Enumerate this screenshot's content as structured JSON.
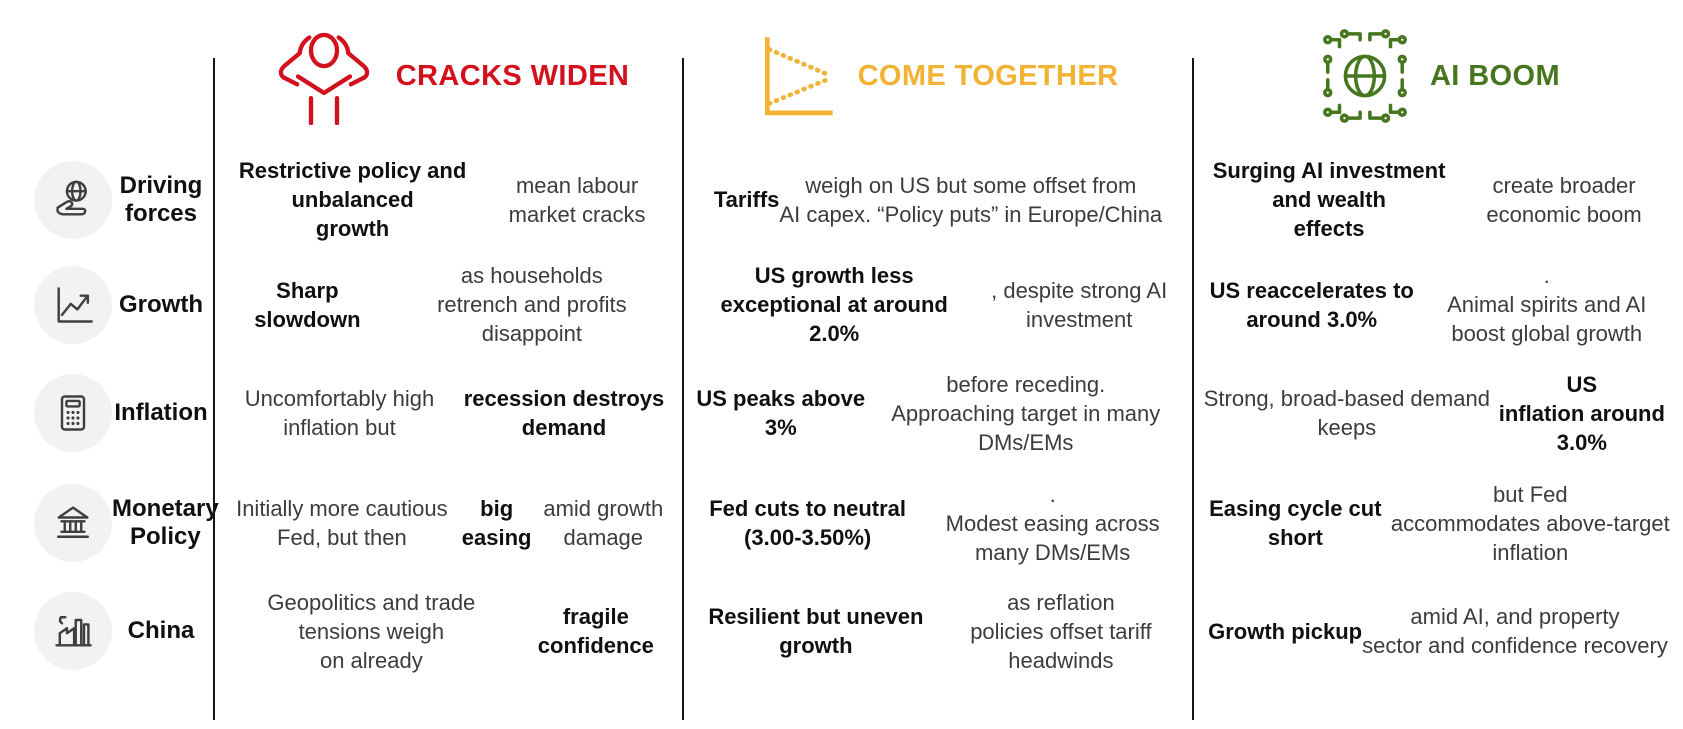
{
  "theme": {
    "circle_bg": "#f2f2f2",
    "icon_gray": "#3f3f3f",
    "ink": "#141414"
  },
  "columns": [
    {
      "title": "CRACKS WIDEN",
      "color": "#d2111c",
      "icon": "head-in-hands-icon"
    },
    {
      "title": "COME TOGETHER",
      "color": "#f2b233",
      "icon": "converging-lines-chart-icon"
    },
    {
      "title": "AI BOOM",
      "color": "#47761f",
      "icon": "ai-globe-circuit-icon"
    }
  ],
  "rows": [
    {
      "label": "Driving\nforces",
      "icon": "hand-holding-globe-icon",
      "cells": [
        [
          {
            "t": "Restrictive policy and unbalanced\ngrowth",
            "b": true
          },
          {
            "t": " mean labour market cracks",
            "b": false
          }
        ],
        [
          {
            "t": "Tariffs",
            "b": true
          },
          {
            "t": " weigh on US but some offset from\nAI capex. “Policy puts” in Europe/China",
            "b": false
          }
        ],
        [
          {
            "t": "Surging AI investment and wealth\neffects",
            "b": true
          },
          {
            "t": " create broader economic boom",
            "b": false
          }
        ]
      ]
    },
    {
      "label": "Growth",
      "icon": "line-chart-up-icon",
      "cells": [
        [
          {
            "t": "Sharp slowdown",
            "b": true
          },
          {
            "t": " as households\nretrench and profits disappoint",
            "b": false
          }
        ],
        [
          {
            "t": "US growth less exceptional at around\n2.0%",
            "b": true
          },
          {
            "t": ", despite strong AI investment",
            "b": false
          }
        ],
        [
          {
            "t": "US reaccelerates to around 3.0%",
            "b": true
          },
          {
            "t": ".\nAnimal spirits and AI boost global growth",
            "b": false
          }
        ]
      ]
    },
    {
      "label": "Inflation",
      "icon": "calculator-icon",
      "cells": [
        [
          {
            "t": "Uncomfortably high inflation but\n",
            "b": false
          },
          {
            "t": "recession destroys demand",
            "b": true
          }
        ],
        [
          {
            "t": "US peaks above 3%",
            "b": true
          },
          {
            "t": " before receding.\nApproaching target in many DMs/EMs",
            "b": false
          }
        ],
        [
          {
            "t": "Strong, broad-based demand keeps ",
            "b": false
          },
          {
            "t": "US\ninflation around 3.0%",
            "b": true
          }
        ]
      ]
    },
    {
      "label": "Monetary\nPolicy",
      "icon": "bank-icon",
      "cells": [
        [
          {
            "t": "Initially more cautious Fed, but then\n",
            "b": false
          },
          {
            "t": "big easing",
            "b": true
          },
          {
            "t": " amid growth damage",
            "b": false
          }
        ],
        [
          {
            "t": "Fed cuts to neutral (3.00-3.50%)",
            "b": true
          },
          {
            "t": ".\nModest easing across many DMs/EMs",
            "b": false
          }
        ],
        [
          {
            "t": "Easing cycle cut short",
            "b": true
          },
          {
            "t": " but Fed\naccommodates above-target inflation",
            "b": false
          }
        ]
      ]
    },
    {
      "label": "China",
      "icon": "factory-icon",
      "cells": [
        [
          {
            "t": "Geopolitics and trade tensions weigh\non already ",
            "b": false
          },
          {
            "t": "fragile confidence",
            "b": true
          }
        ],
        [
          {
            "t": "Resilient but uneven growth",
            "b": true
          },
          {
            "t": " as reflation\npolicies offset tariff headwinds",
            "b": false
          }
        ],
        [
          {
            "t": "Growth pickup",
            "b": true
          },
          {
            "t": " amid AI, and property\nsector and confidence recovery",
            "b": false
          }
        ]
      ]
    }
  ]
}
